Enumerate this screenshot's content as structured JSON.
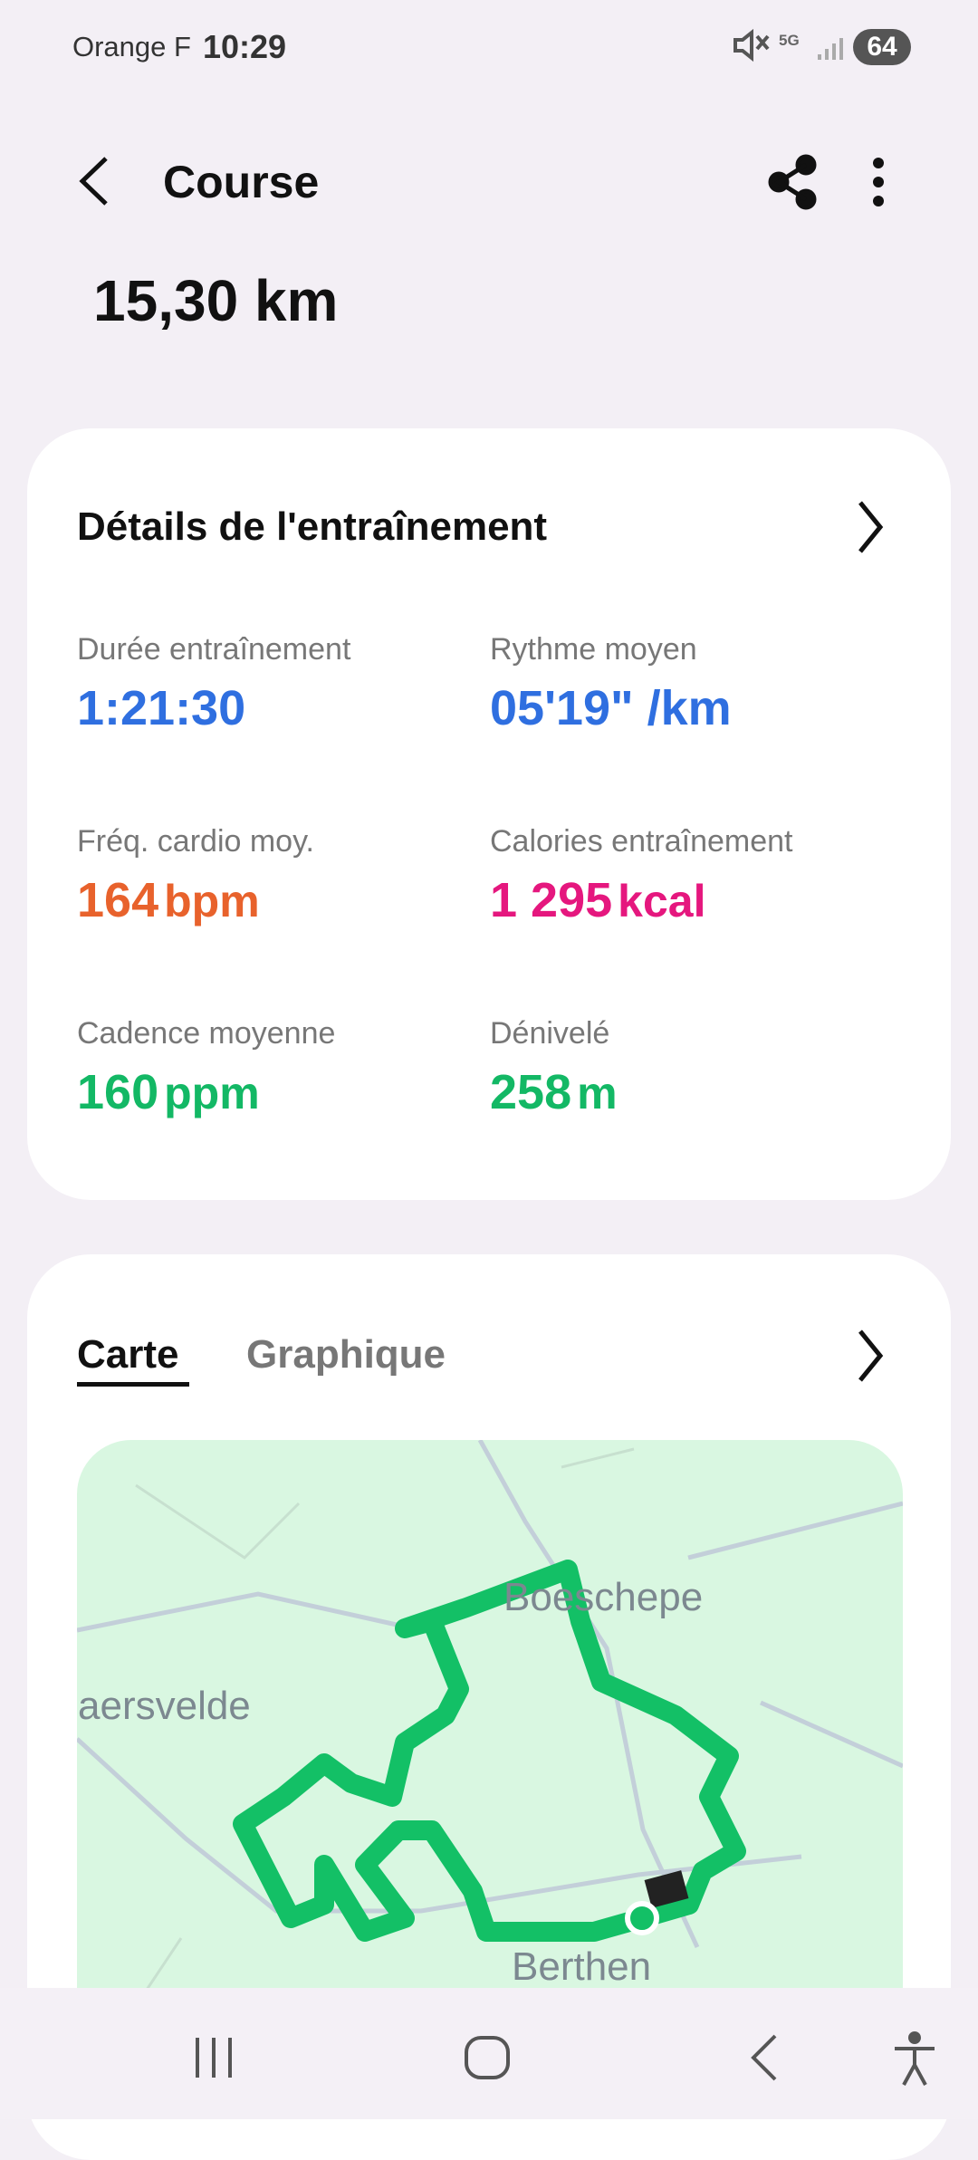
{
  "status_bar": {
    "carrier": "Orange F",
    "time": "10:29",
    "network": "5G",
    "battery": "64"
  },
  "header": {
    "title": "Course",
    "distance": "15,30 km"
  },
  "details_card": {
    "title": "Détails de l'entraînement",
    "metrics": [
      {
        "label": "Durée entraînement",
        "value": "1:21:30"
      },
      {
        "label": "Rythme moyen",
        "value": "05'19\" /km"
      },
      {
        "label": "Fréq. cardio moy.",
        "value": "164",
        "unit": "bpm"
      },
      {
        "label": "Calories entraînement",
        "value": "1 295",
        "unit": "kcal"
      },
      {
        "label": "Cadence moyenne",
        "value": "160",
        "unit": "ppm"
      },
      {
        "label": "Dénivelé",
        "value": "258",
        "unit": "m"
      }
    ]
  },
  "map_card": {
    "tabs": [
      "Carte",
      "Graphique"
    ],
    "map_labels": [
      "Boeschepe",
      "aersvelde",
      "Berthen"
    ]
  }
}
